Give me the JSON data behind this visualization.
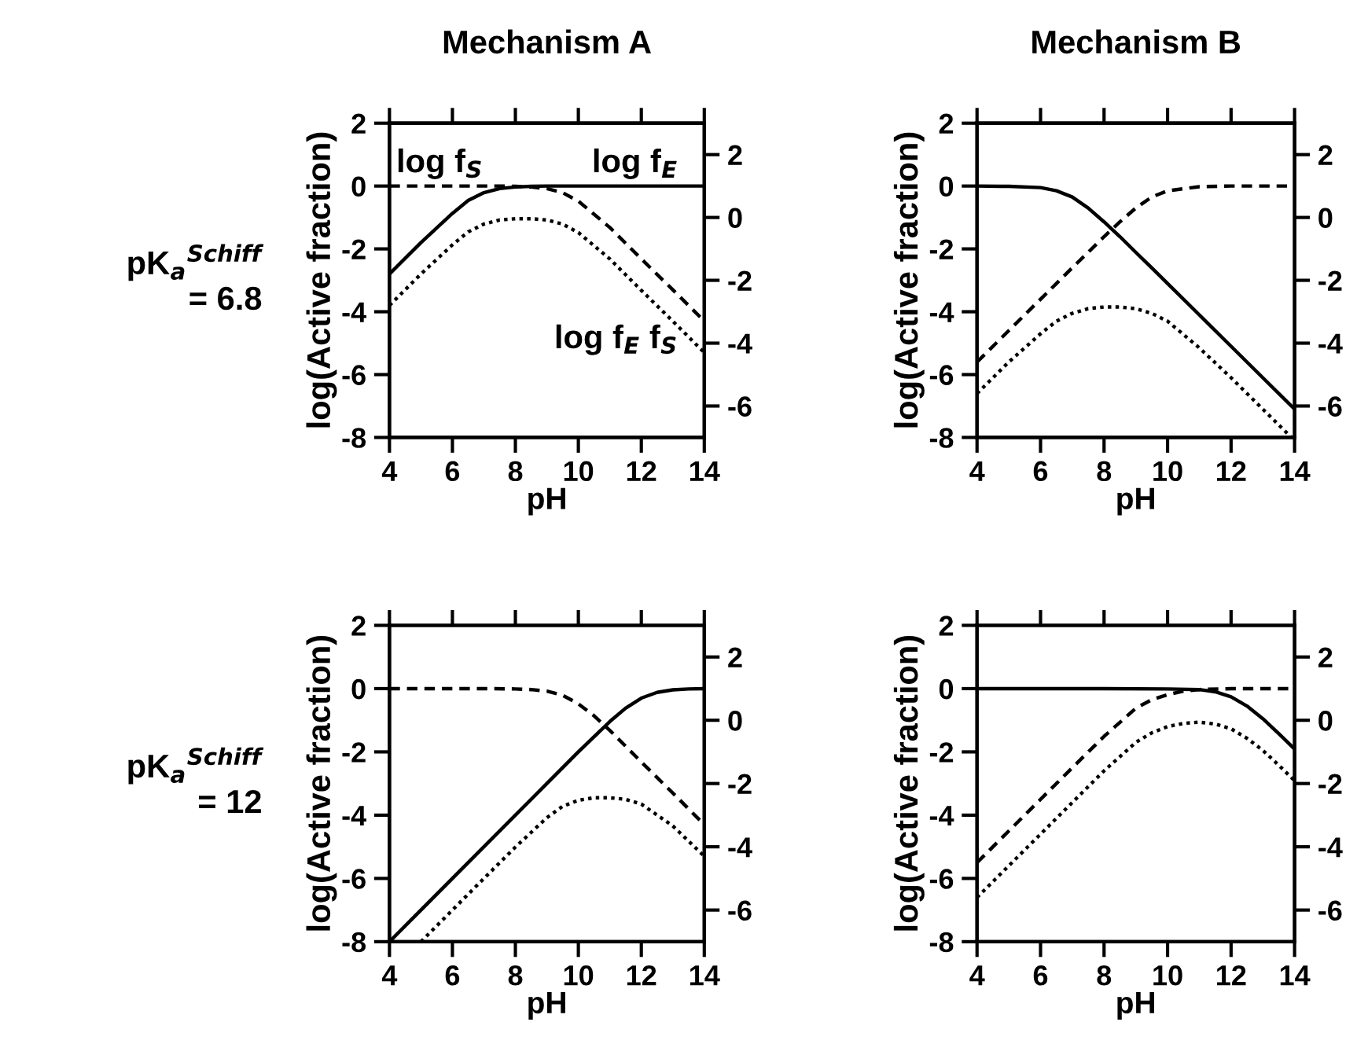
{
  "chart_data": [
    {
      "type": "line",
      "title": "Mechanism A",
      "xlabel": "pH",
      "ylabel": "log(Active fraction)",
      "xlim": [
        4,
        14
      ],
      "xticks": [
        4,
        6,
        8,
        10,
        12,
        14
      ],
      "ylim": [
        -8,
        2
      ],
      "yticks": [
        -8,
        -6,
        -4,
        -2,
        0,
        2
      ],
      "y2lim": [
        -7,
        3
      ],
      "y2ticks": [
        -6,
        -4,
        -2,
        0,
        2
      ],
      "grid": false,
      "legend": false,
      "marker": "none",
      "x": [
        4,
        5,
        6,
        6.5,
        7,
        7.5,
        8,
        8.5,
        9,
        9.5,
        10,
        11,
        12,
        13,
        14
      ],
      "series": [
        {
          "color": "#000000",
          "line_style": "solid",
          "values": [
            -2.8,
            -1.8,
            -0.87,
            -0.46,
            -0.21,
            -0.08,
            -0.03,
            -0.01,
            0,
            0,
            0,
            0,
            0,
            0,
            0
          ]
        },
        {
          "color": "#000000",
          "line_style": "dashed",
          "values": [
            0,
            0,
            0,
            0,
            0,
            0,
            -0.01,
            -0.03,
            -0.08,
            -0.21,
            -0.48,
            -1.32,
            -2.32,
            -3.3,
            -4.3
          ]
        },
        {
          "color": "#000000",
          "line_style": "dotted",
          "axis": "y2",
          "values": [
            -2.8,
            -1.8,
            -0.87,
            -0.46,
            -0.21,
            -0.08,
            -0.04,
            -0.04,
            -0.08,
            -0.21,
            -0.48,
            -1.32,
            -2.32,
            -3.3,
            -4.3
          ]
        }
      ],
      "annotations": [
        "pK$_{a}$$^{Schiff}$\n= 6.8",
        "log f$_{S}$",
        "log f$_{E}$",
        "log f$_{E}$ f$_{S}$"
      ]
    },
    {
      "type": "line",
      "title": "Mechanism B",
      "xlabel": "pH",
      "ylabel": "log(Active fraction)",
      "xlim": [
        4,
        14
      ],
      "xticks": [
        4,
        6,
        8,
        10,
        12,
        14
      ],
      "ylim": [
        -8,
        2
      ],
      "yticks": [
        -8,
        -6,
        -4,
        -2,
        0,
        2
      ],
      "y2lim": [
        -7,
        3
      ],
      "y2ticks": [
        -6,
        -4,
        -2,
        0,
        2
      ],
      "grid": false,
      "legend": false,
      "marker": "none",
      "series": [
        {
          "color": "#000000",
          "line_style": "solid",
          "x": [
            4,
            5,
            6,
            6.5,
            7,
            7.5,
            8,
            8.5,
            9,
            9.5,
            10,
            11,
            12,
            13,
            14
          ],
          "values": [
            0,
            -0.01,
            -0.05,
            -0.15,
            -0.35,
            -0.7,
            -1.14,
            -1.61,
            -2.11,
            -2.6,
            -3.1,
            -4.1,
            -5.1,
            -6.1,
            -7.1
          ]
        },
        {
          "color": "#000000",
          "line_style": "dashed",
          "x": [
            4,
            5,
            6,
            6.5,
            7,
            7.5,
            8,
            8.5,
            9,
            9.5,
            10,
            11,
            12,
            13,
            14
          ],
          "values": [
            -5.6,
            -4.6,
            -3.6,
            -3.1,
            -2.6,
            -2.11,
            -1.61,
            -1.14,
            -0.7,
            -0.35,
            -0.15,
            -0.02,
            0,
            0,
            0
          ]
        },
        {
          "color": "#000000",
          "line_style": "dotted",
          "axis": "y2",
          "x": [
            4,
            5,
            6,
            6.5,
            7,
            7.5,
            8,
            8.5,
            9,
            9.5,
            10,
            11,
            12,
            13,
            13.9
          ],
          "values": [
            -5.6,
            -4.6,
            -3.7,
            -3.3,
            -3.05,
            -2.9,
            -2.85,
            -2.85,
            -2.9,
            -3.05,
            -3.3,
            -4.15,
            -5.1,
            -6.1,
            -7.0
          ]
        }
      ]
    },
    {
      "type": "line",
      "xlabel": "pH",
      "ylabel": "log(Active fraction)",
      "xlim": [
        4,
        14
      ],
      "xticks": [
        4,
        6,
        8,
        10,
        12,
        14
      ],
      "ylim": [
        -8,
        2
      ],
      "yticks": [
        -8,
        -6,
        -4,
        -2,
        0,
        2
      ],
      "y2lim": [
        -7,
        3
      ],
      "y2ticks": [
        -6,
        -4,
        -2,
        0,
        2
      ],
      "grid": false,
      "legend": false,
      "marker": "none",
      "series": [
        {
          "color": "#000000",
          "line_style": "solid",
          "x": [
            4,
            5,
            6,
            7,
            8,
            9,
            10,
            11,
            11.5,
            12,
            12.5,
            13,
            13.5,
            14
          ],
          "values": [
            -8,
            -7,
            -6,
            -5,
            -4,
            -3,
            -2,
            -1.04,
            -0.62,
            -0.3,
            -0.12,
            -0.04,
            -0.01,
            0
          ]
        },
        {
          "color": "#000000",
          "line_style": "dashed",
          "x": [
            4,
            5,
            6,
            7,
            8,
            8.5,
            9,
            9.5,
            10,
            10.5,
            11,
            12,
            13,
            14
          ],
          "values": [
            0,
            0,
            0,
            0,
            -0.01,
            -0.03,
            -0.08,
            -0.21,
            -0.48,
            -0.86,
            -1.32,
            -2.32,
            -3.3,
            -4.3
          ]
        },
        {
          "color": "#000000",
          "line_style": "dotted",
          "axis": "y2",
          "x": [
            5,
            6,
            7,
            8,
            9,
            9.5,
            10,
            10.5,
            11,
            11.5,
            12,
            13,
            14
          ],
          "values": [
            -7,
            -6,
            -5,
            -4.01,
            -3.08,
            -2.72,
            -2.53,
            -2.45,
            -2.45,
            -2.5,
            -2.65,
            -3.34,
            -4.3
          ]
        }
      ],
      "annotations": [
        "pK$_{a}$$^{Schiff}$\n= 12"
      ]
    },
    {
      "type": "line",
      "xlabel": "pH",
      "ylabel": "log(Active fraction)",
      "xlim": [
        4,
        14
      ],
      "xticks": [
        4,
        6,
        8,
        10,
        12,
        14
      ],
      "ylim": [
        -8,
        2
      ],
      "yticks": [
        -8,
        -6,
        -4,
        -2,
        0,
        2
      ],
      "y2lim": [
        -7,
        3
      ],
      "y2ticks": [
        -6,
        -4,
        -2,
        0,
        2
      ],
      "grid": false,
      "legend": false,
      "marker": "none",
      "series": [
        {
          "color": "#000000",
          "line_style": "solid",
          "x": [
            4,
            6,
            8,
            10,
            11,
            11.5,
            12,
            12.5,
            13,
            13.5,
            14
          ],
          "values": [
            0,
            0,
            0,
            -0.01,
            -0.03,
            -0.1,
            -0.26,
            -0.55,
            -0.95,
            -1.42,
            -1.91
          ]
        },
        {
          "color": "#000000",
          "line_style": "dashed",
          "x": [
            4,
            5,
            6,
            7,
            8,
            9,
            9.5,
            10,
            10.5,
            11,
            12,
            13,
            14
          ],
          "values": [
            -5.5,
            -4.5,
            -3.5,
            -2.5,
            -1.51,
            -0.62,
            -0.35,
            -0.19,
            -0.08,
            -0.03,
            0,
            0,
            0
          ]
        },
        {
          "color": "#000000",
          "line_style": "dotted",
          "axis": "y2",
          "x": [
            4,
            5,
            6,
            7,
            8,
            9,
            9.5,
            10,
            10.5,
            11,
            11.5,
            12,
            12.5,
            13,
            13.5,
            14
          ],
          "values": [
            -5.6,
            -4.6,
            -3.6,
            -2.6,
            -1.6,
            -0.7,
            -0.4,
            -0.2,
            -0.1,
            -0.06,
            -0.12,
            -0.27,
            -0.57,
            -0.95,
            -1.42,
            -1.91
          ]
        }
      ]
    }
  ]
}
